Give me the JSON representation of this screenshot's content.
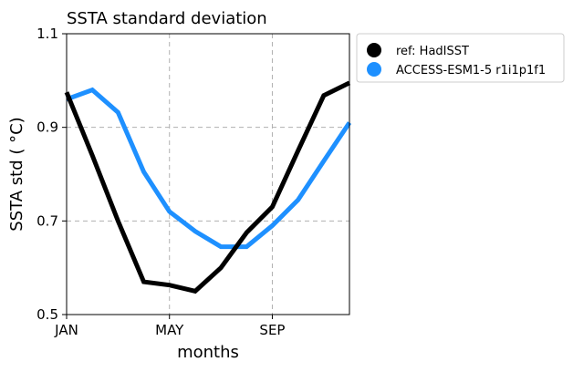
{
  "chart_data": {
    "type": "line",
    "title": "SSTA standard deviation",
    "xlabel": "months",
    "ylabel": "SSTA std ( °C)",
    "x": [
      1,
      2,
      3,
      4,
      5,
      6,
      7,
      8,
      9,
      10,
      11,
      12
    ],
    "x_ticks": [
      {
        "x": 1,
        "label": "JAN"
      },
      {
        "x": 5,
        "label": "MAY"
      },
      {
        "x": 9,
        "label": "SEP"
      }
    ],
    "xlim": [
      1,
      12
    ],
    "y_ticks": [
      {
        "y": 0.5,
        "label": "0.5"
      },
      {
        "y": 0.7,
        "label": "0.7"
      },
      {
        "y": 0.9,
        "label": "0.9"
      },
      {
        "y": 1.1,
        "label": "1.1"
      }
    ],
    "ylim": [
      0.5,
      1.1
    ],
    "grid": true,
    "legend_position": "outside-right",
    "series": [
      {
        "name": "ref: HadISST",
        "color": "#000000",
        "values": [
          0.975,
          0.84,
          0.7,
          0.57,
          0.563,
          0.55,
          0.6,
          0.675,
          0.73,
          0.85,
          0.968,
          0.995
        ]
      },
      {
        "name": "ACCESS-ESM1-5 r1i1p1f1",
        "color": "#1e90ff",
        "values": [
          0.96,
          0.98,
          0.932,
          0.805,
          0.72,
          0.678,
          0.645,
          0.645,
          0.69,
          0.745,
          0.828,
          0.91
        ]
      }
    ]
  }
}
